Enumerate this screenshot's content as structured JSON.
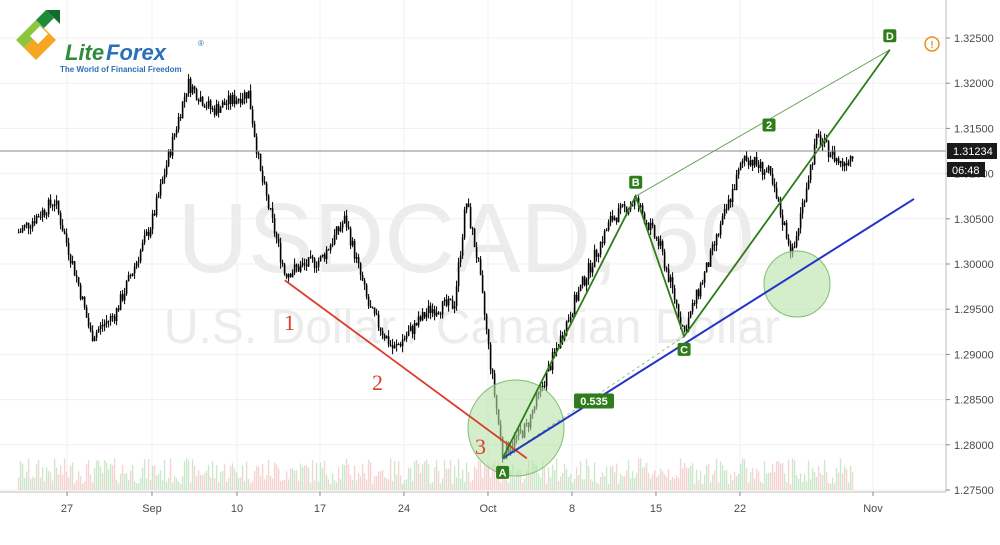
{
  "chart_data": {
    "type": "candlestick",
    "symbol": "USDCAD, 60",
    "symbol_description": "U.S. Dollar / Canadian Dollar",
    "brand": {
      "logo_text_1": "Lite",
      "logo_text_2": "Forex",
      "registered": "®",
      "tagline": "The World of Financial Freedom"
    },
    "y_axis": {
      "ticks": [
        "1.32500",
        "1.32000",
        "1.31500",
        "1.31000",
        "1.30500",
        "1.30000",
        "1.29500",
        "1.29000",
        "1.28500",
        "1.28000",
        "1.27500"
      ],
      "ylim": [
        1.275,
        1.326
      ]
    },
    "x_axis": {
      "ticks": [
        "27",
        "Sep",
        "10",
        "17",
        "24",
        "Oct",
        "8",
        "15",
        "22",
        "Nov"
      ]
    },
    "current_price": "1.31234",
    "countdown": "06:48",
    "path": [
      {
        "date": "Aug 23",
        "price": 1.3035
      },
      {
        "date": "Aug 26",
        "price": 1.307
      },
      {
        "date": "Aug 28",
        "price": 1.2975
      },
      {
        "date": "Aug 29",
        "price": 1.292
      },
      {
        "date": "Aug 31",
        "price": 1.2945
      },
      {
        "date": "Sep 3",
        "price": 1.3045
      },
      {
        "date": "Sep 5",
        "price": 1.315
      },
      {
        "date": "Sep 6",
        "price": 1.32
      },
      {
        "date": "Sep 8",
        "price": 1.317
      },
      {
        "date": "Sep 11",
        "price": 1.319
      },
      {
        "date": "Sep 12",
        "price": 1.31
      },
      {
        "date": "Sep 14",
        "price": 1.299
      },
      {
        "date": "Sep 17",
        "price": 1.3005
      },
      {
        "date": "Sep 19",
        "price": 1.305
      },
      {
        "date": "Sep 21",
        "price": 1.295
      },
      {
        "date": "Sep 23",
        "price": 1.2905
      },
      {
        "date": "Sep 26",
        "price": 1.295
      },
      {
        "date": "Sep 28",
        "price": 1.2955
      },
      {
        "date": "Sep 29",
        "price": 1.307
      },
      {
        "date": "Sep 30",
        "price": 1.3
      },
      {
        "date": "Oct 1",
        "price": 1.289
      },
      {
        "date": "Oct 2",
        "price": 1.279
      },
      {
        "date": "Oct 4",
        "price": 1.282
      },
      {
        "date": "Oct 6",
        "price": 1.289
      },
      {
        "date": "Oct 8",
        "price": 1.296
      },
      {
        "date": "Oct 11",
        "price": 1.305
      },
      {
        "date": "Oct 13",
        "price": 1.307
      },
      {
        "date": "Oct 15",
        "price": 1.302
      },
      {
        "date": "Oct 17",
        "price": 1.2925
      },
      {
        "date": "Oct 19",
        "price": 1.3
      },
      {
        "date": "Oct 21",
        "price": 1.308
      },
      {
        "date": "Oct 22",
        "price": 1.312
      },
      {
        "date": "Oct 24",
        "price": 1.31
      },
      {
        "date": "Oct 26",
        "price": 1.301
      },
      {
        "date": "Oct 27",
        "price": 1.308
      },
      {
        "date": "Oct 28",
        "price": 1.314
      },
      {
        "date": "Oct 30",
        "price": 1.311
      },
      {
        "date": "Oct 31",
        "price": 1.3123
      }
    ],
    "points": {
      "A": {
        "date": "Oct 2",
        "price": 1.2785
      },
      "B": {
        "date": "Oct 13",
        "price": 1.3075
      },
      "C": {
        "date": "Oct 17",
        "price": 1.292
      },
      "D": {
        "date": "Nov 3",
        "price": 1.3237
      }
    },
    "labels": {
      "A": "A",
      "B": "B",
      "C": "C",
      "D": "D",
      "fib": "0.535",
      "two_green": "2",
      "one_red": "1",
      "two_red": "2",
      "three_red": "3"
    },
    "alert_icon": "!",
    "colors": {
      "bull_green": "#2e7d1a",
      "red_line": "#e03a2e",
      "blue_line": "#2433c8",
      "circle_fill": "#b8e2a8",
      "candle": "#000000",
      "volume_green": "#a8d8a8",
      "volume_red": "#f2b6b6",
      "alert_orange": "#f08a24"
    }
  }
}
